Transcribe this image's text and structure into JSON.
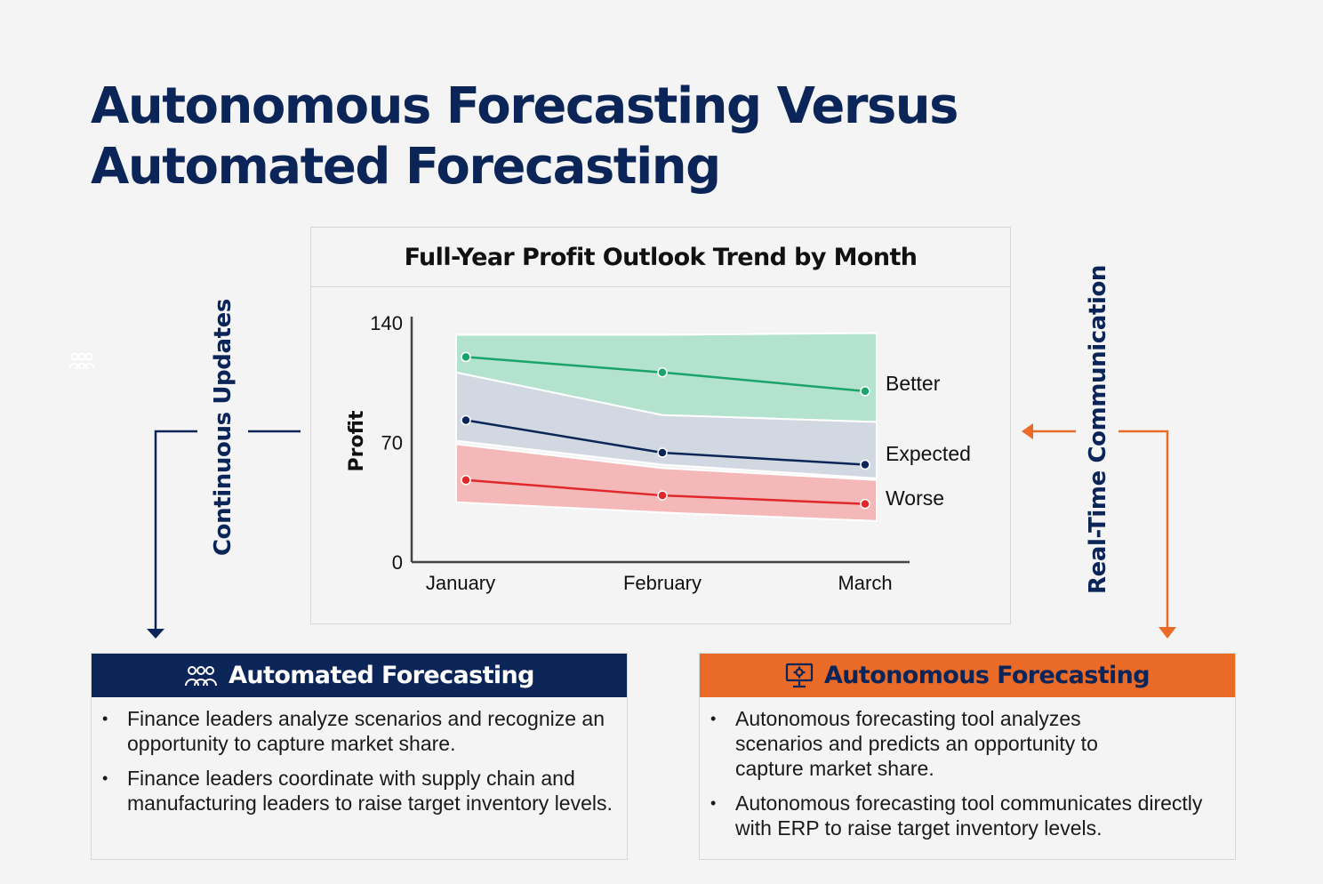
{
  "title": {
    "line1": "Autonomous Forecasting Versus",
    "line2": "Automated Forecasting"
  },
  "chart_data": {
    "type": "line",
    "title": "Full-Year Profit Outlook Trend by Month",
    "ylabel": "Profit",
    "xlabel": "",
    "categories": [
      "January",
      "February",
      "March"
    ],
    "ylim": [
      0,
      140
    ],
    "yticks": [
      "0",
      "70",
      "140"
    ],
    "series": [
      {
        "name": "Better",
        "values": [
          120,
          111,
          100
        ],
        "color": "#1aa36a",
        "band_upper": [
          133,
          133,
          134
        ],
        "band_lower": [
          110,
          86,
          82
        ],
        "band_color": "#b3e3cf"
      },
      {
        "name": "Expected",
        "values": [
          83,
          64,
          57
        ],
        "color": "#0b2558",
        "band_upper": [
          111,
          86,
          82
        ],
        "band_lower": [
          71,
          57,
          49
        ],
        "band_color": "#d2d8e2"
      },
      {
        "name": "Worse",
        "values": [
          48,
          39,
          34
        ],
        "color": "#e0282c",
        "band_upper": [
          69,
          55,
          48
        ],
        "band_lower": [
          35,
          29,
          24
        ],
        "band_color": "#f5b8b8"
      }
    ],
    "grid": false,
    "legend": "right, inline labels"
  },
  "left_connector": {
    "label": "Continuous Updates",
    "color": "#0b2558"
  },
  "right_connector": {
    "label": "Real-Time Communication",
    "color": "#ea6a27"
  },
  "automated": {
    "heading": "Automated Forecasting",
    "icon": "people-group-icon",
    "color": "#0b2558",
    "bullets": [
      "Finance leaders analyze scenarios and recognize an opportunity to capture market share.",
      "Finance leaders coordinate with supply chain and manufacturing leaders to raise target inventory levels."
    ]
  },
  "autonomous": {
    "heading": "Autonomous Forecasting",
    "icon": "monitor-icon",
    "color": "#ea6a27",
    "bullets": [
      "Autonomous forecasting tool analyzes scenarios and predicts an opportunity to capture market share.",
      "Autonomous forecasting tool communicates directly with ERP to raise target inventory levels."
    ]
  }
}
